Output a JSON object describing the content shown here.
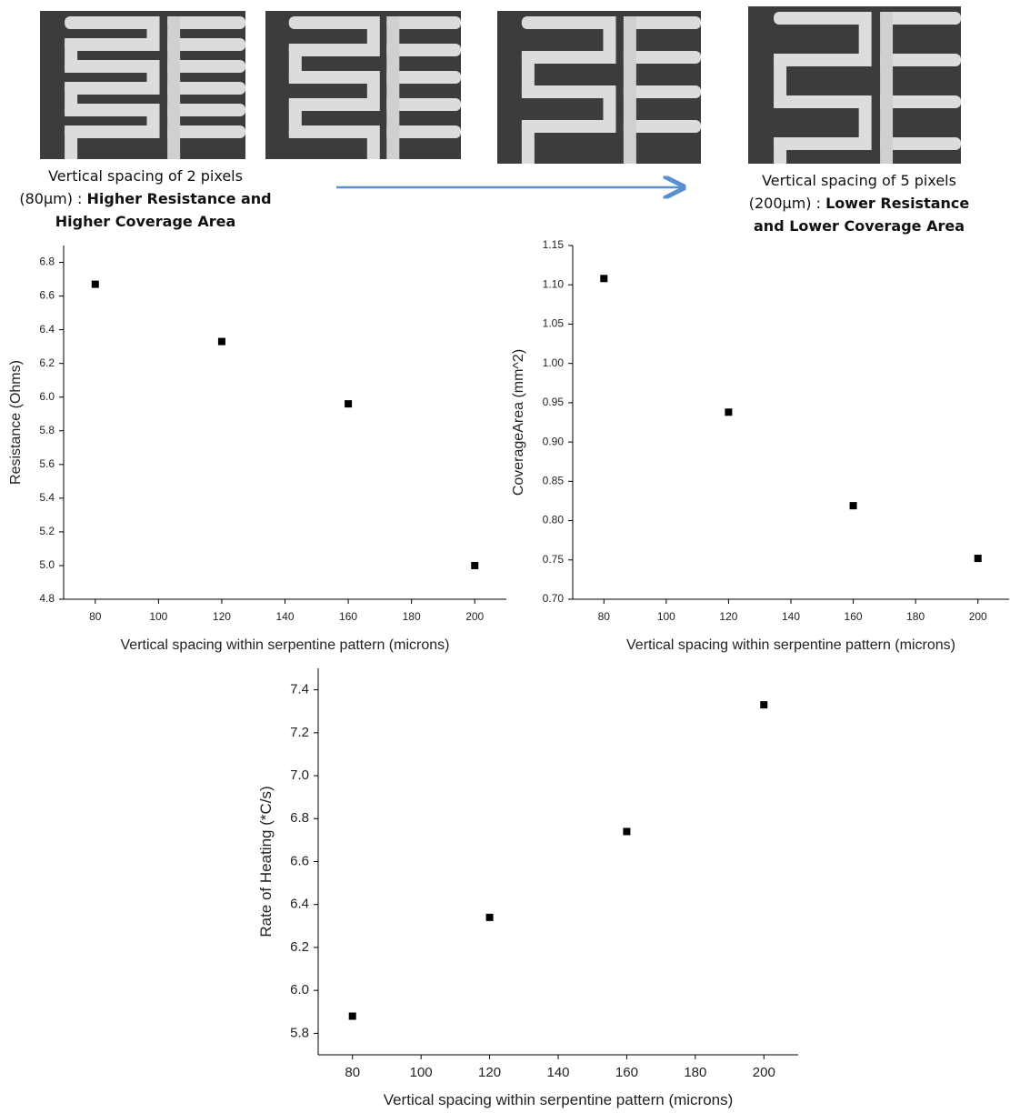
{
  "header": {
    "captions": [
      {
        "line1": "Vertical spacing of 2 pixels",
        "prefix": "(80μm) : ",
        "bold1": "Higher Resistance and",
        "bold2": "Higher Coverage Area"
      },
      {
        "line1": "Vertical spacing of 5 pixels",
        "prefix": "(200μm) : ",
        "bold1": "Lower Resistance",
        "bold2": "and Lower Coverage Area"
      }
    ]
  },
  "chart_data": [
    {
      "type": "scatter",
      "x_label": "Vertical spacing within serpentine pattern (microns)",
      "y_label": "Resistance (Ohms)",
      "x": [
        80,
        120,
        160,
        200
      ],
      "values": [
        6.67,
        6.33,
        5.96,
        5.0
      ],
      "color": "#000000",
      "xlim": [
        70,
        210
      ],
      "xticks": [
        80,
        100,
        120,
        140,
        160,
        180,
        200
      ],
      "ylim": [
        4.8,
        6.9
      ],
      "yticks": [
        4.8,
        {
          "value": 5,
          "label": "5.0"
        },
        5.2,
        5.4,
        5.6,
        5.8,
        {
          "value": 6,
          "label": "6.0"
        },
        6.2,
        6.4,
        6.6,
        6.8
      ]
    },
    {
      "type": "scatter",
      "x_label": "Vertical spacing within serpentine pattern (microns)",
      "y_label": "CoverageArea (mm^2)",
      "x": [
        80,
        120,
        160,
        200
      ],
      "values": [
        1.108,
        0.938,
        0.819,
        0.752
      ],
      "color": "#000000",
      "xlim": [
        70,
        210
      ],
      "xticks": [
        80,
        100,
        120,
        140,
        160,
        180,
        200
      ],
      "ylim": [
        0.7,
        1.15
      ],
      "yticks": [
        {
          "value": 0.7,
          "label": "0.70"
        },
        0.75,
        {
          "value": 0.8,
          "label": "0.80"
        },
        0.85,
        {
          "value": 0.9,
          "label": "0.90"
        },
        0.95,
        {
          "value": 1,
          "label": "1.00"
        },
        1.05,
        {
          "value": 1.1,
          "label": "1.10"
        },
        1.15
      ]
    },
    {
      "type": "scatter",
      "x_label": "Vertical spacing within serpentine pattern (microns)",
      "y_label": "Rate of Heating (*C/s)",
      "x": [
        80,
        120,
        160,
        200
      ],
      "values": [
        5.88,
        6.34,
        6.74,
        7.33
      ],
      "color": "#000000",
      "xlim": [
        70,
        210
      ],
      "xticks": [
        80,
        100,
        120,
        140,
        160,
        180,
        200
      ],
      "ylim": [
        5.7,
        7.5
      ],
      "yticks": [
        5.8,
        {
          "value": 6,
          "label": "6.0"
        },
        6.2,
        6.4,
        6.6,
        6.8,
        {
          "value": 7,
          "label": "7.0"
        },
        7.2,
        7.4
      ]
    }
  ]
}
